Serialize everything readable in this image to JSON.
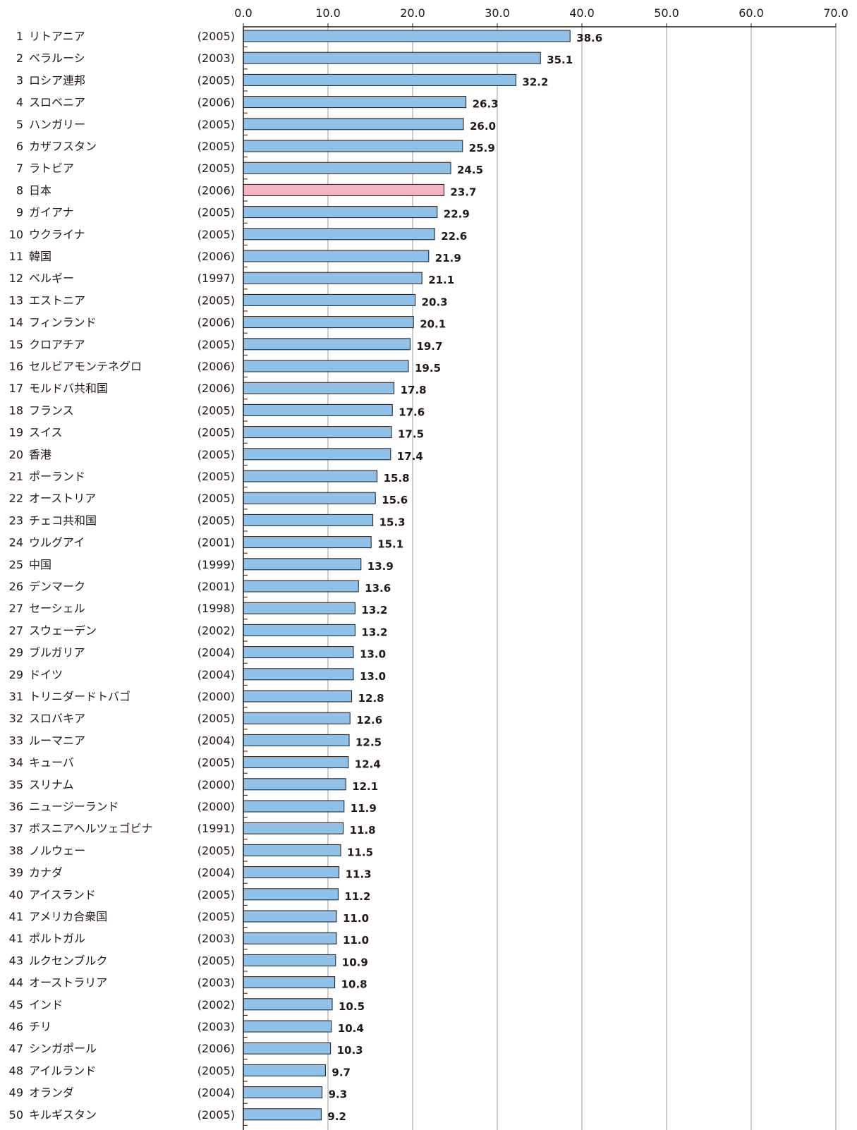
{
  "chart_data": {
    "type": "bar",
    "orientation": "horizontal",
    "xlim": [
      0,
      70
    ],
    "x_ticks": [
      "0.0",
      "10.0",
      "20.0",
      "30.0",
      "40.0",
      "50.0",
      "60.0",
      "70.0"
    ],
    "grid": true,
    "colors": {
      "bar": "#8fc1e9",
      "highlight": "#f6b4c1",
      "stroke": "#231815",
      "grid": "#9a9a9a"
    },
    "highlight_category": "日本",
    "rows": [
      {
        "rank": "1",
        "name": "リトアニア",
        "year": "(2005)",
        "value": 38.6
      },
      {
        "rank": "2",
        "name": "ベラルーシ",
        "year": "(2003)",
        "value": 35.1
      },
      {
        "rank": "3",
        "name": "ロシア連邦",
        "year": "(2005)",
        "value": 32.2
      },
      {
        "rank": "4",
        "name": "スロベニア",
        "year": "(2006)",
        "value": 26.3
      },
      {
        "rank": "5",
        "name": "ハンガリー",
        "year": "(2005)",
        "value": 26.0
      },
      {
        "rank": "6",
        "name": "カザフスタン",
        "year": "(2005)",
        "value": 25.9
      },
      {
        "rank": "7",
        "name": "ラトビア",
        "year": "(2005)",
        "value": 24.5
      },
      {
        "rank": "8",
        "name": "日本",
        "year": "(2006)",
        "value": 23.7
      },
      {
        "rank": "9",
        "name": "ガイアナ",
        "year": "(2005)",
        "value": 22.9
      },
      {
        "rank": "10",
        "name": "ウクライナ",
        "year": "(2005)",
        "value": 22.6
      },
      {
        "rank": "11",
        "name": "韓国",
        "year": "(2006)",
        "value": 21.9
      },
      {
        "rank": "12",
        "name": "ベルギー",
        "year": "(1997)",
        "value": 21.1
      },
      {
        "rank": "13",
        "name": "エストニア",
        "year": "(2005)",
        "value": 20.3
      },
      {
        "rank": "14",
        "name": "フィンランド",
        "year": "(2006)",
        "value": 20.1
      },
      {
        "rank": "15",
        "name": "クロアチア",
        "year": "(2005)",
        "value": 19.7
      },
      {
        "rank": "16",
        "name": "セルビアモンテネグロ",
        "year": "(2006)",
        "value": 19.5
      },
      {
        "rank": "17",
        "name": "モルドバ共和国",
        "year": "(2006)",
        "value": 17.8
      },
      {
        "rank": "18",
        "name": "フランス",
        "year": "(2005)",
        "value": 17.6
      },
      {
        "rank": "19",
        "name": "スイス",
        "year": "(2005)",
        "value": 17.5
      },
      {
        "rank": "20",
        "name": "香港",
        "year": "(2005)",
        "value": 17.4
      },
      {
        "rank": "21",
        "name": "ポーランド",
        "year": "(2005)",
        "value": 15.8
      },
      {
        "rank": "22",
        "name": "オーストリア",
        "year": "(2005)",
        "value": 15.6
      },
      {
        "rank": "23",
        "name": "チェコ共和国",
        "year": "(2005)",
        "value": 15.3
      },
      {
        "rank": "24",
        "name": "ウルグアイ",
        "year": "(2001)",
        "value": 15.1
      },
      {
        "rank": "25",
        "name": "中国",
        "year": "(1999)",
        "value": 13.9
      },
      {
        "rank": "26",
        "name": "デンマーク",
        "year": "(2001)",
        "value": 13.6
      },
      {
        "rank": "27",
        "name": "セーシェル",
        "year": "(1998)",
        "value": 13.2
      },
      {
        "rank": "27",
        "name": "スウェーデン",
        "year": "(2002)",
        "value": 13.2
      },
      {
        "rank": "29",
        "name": "ブルガリア",
        "year": "(2004)",
        "value": 13.0
      },
      {
        "rank": "29",
        "name": "ドイツ",
        "year": "(2004)",
        "value": 13.0
      },
      {
        "rank": "31",
        "name": "トリニダードトバゴ",
        "year": "(2000)",
        "value": 12.8
      },
      {
        "rank": "32",
        "name": "スロバキア",
        "year": "(2005)",
        "value": 12.6
      },
      {
        "rank": "33",
        "name": "ルーマニア",
        "year": "(2004)",
        "value": 12.5
      },
      {
        "rank": "34",
        "name": "キューバ",
        "year": "(2005)",
        "value": 12.4
      },
      {
        "rank": "35",
        "name": "スリナム",
        "year": "(2000)",
        "value": 12.1
      },
      {
        "rank": "36",
        "name": "ニュージーランド",
        "year": "(2000)",
        "value": 11.9
      },
      {
        "rank": "37",
        "name": "ボスニアヘルツェゴビナ",
        "year": "(1991)",
        "value": 11.8
      },
      {
        "rank": "38",
        "name": "ノルウェー",
        "year": "(2005)",
        "value": 11.5
      },
      {
        "rank": "39",
        "name": "カナダ",
        "year": "(2004)",
        "value": 11.3
      },
      {
        "rank": "40",
        "name": "アイスランド",
        "year": "(2005)",
        "value": 11.2
      },
      {
        "rank": "41",
        "name": "アメリカ合衆国",
        "year": "(2005)",
        "value": 11.0
      },
      {
        "rank": "41",
        "name": "ポルトガル",
        "year": "(2003)",
        "value": 11.0
      },
      {
        "rank": "43",
        "name": "ルクセンブルク",
        "year": "(2005)",
        "value": 10.9
      },
      {
        "rank": "44",
        "name": "オーストラリア",
        "year": "(2003)",
        "value": 10.8
      },
      {
        "rank": "45",
        "name": "インド",
        "year": "(2002)",
        "value": 10.5
      },
      {
        "rank": "46",
        "name": "チリ",
        "year": "(2003)",
        "value": 10.4
      },
      {
        "rank": "47",
        "name": "シンガポール",
        "year": "(2006)",
        "value": 10.3
      },
      {
        "rank": "48",
        "name": "アイルランド",
        "year": "(2005)",
        "value": 9.7
      },
      {
        "rank": "49",
        "name": "オランダ",
        "year": "(2004)",
        "value": 9.3
      },
      {
        "rank": "50",
        "name": "キルギスタン",
        "year": "(2005)",
        "value": 9.2
      }
    ]
  }
}
